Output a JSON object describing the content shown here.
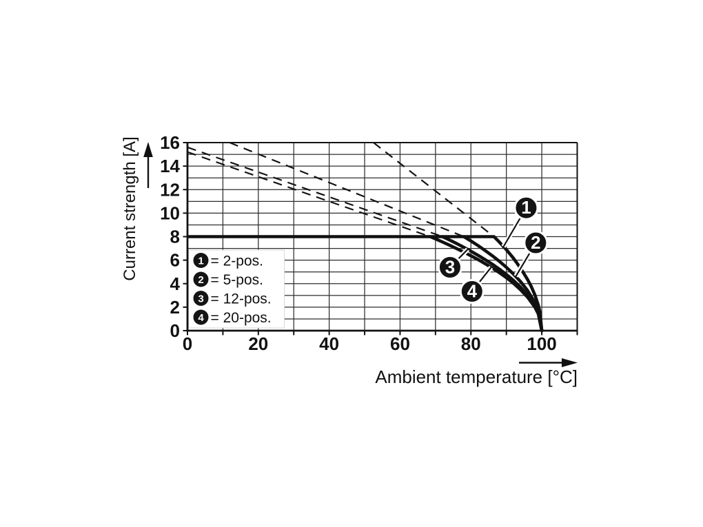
{
  "chart_data": {
    "type": "line",
    "title": "",
    "xlabel": "Ambient temperature [°C]",
    "ylabel": "Current strength [A]",
    "xlim": [
      0,
      110
    ],
    "ylim": [
      0,
      16
    ],
    "x_ticks_labeled": [
      0,
      20,
      40,
      60,
      80,
      100
    ],
    "x_grid_step": 10,
    "y_ticks_labeled": [
      0,
      2,
      4,
      6,
      8,
      10,
      12,
      14,
      16
    ],
    "y_grid_step": 1,
    "grid": true,
    "background": "#ffffff",
    "line_color": "#111111",
    "grid_color": "#2d2d2d",
    "current_limit_a": 8,
    "limit_line": {
      "from_t": 0,
      "to_t": 86.5,
      "current": 8
    },
    "series": [
      {
        "name": "2-pos.",
        "marker_label": "1",
        "points": [
          [
            86.5,
            8
          ],
          [
            88,
            7.54
          ],
          [
            90,
            6.89
          ],
          [
            92,
            6.16
          ],
          [
            94,
            5.33
          ],
          [
            96,
            4.35
          ],
          [
            97,
            3.77
          ],
          [
            98,
            3.08
          ],
          [
            99,
            2.18
          ],
          [
            99.5,
            1.54
          ],
          [
            100,
            0
          ]
        ],
        "dashed_extension": [
          [
            52.5,
            16
          ],
          [
            86.5,
            8
          ]
        ]
      },
      {
        "name": "5-pos.",
        "marker_label": "2",
        "points": [
          [
            78,
            8
          ],
          [
            80,
            7.63
          ],
          [
            82,
            7.24
          ],
          [
            84,
            6.82
          ],
          [
            86,
            6.38
          ],
          [
            88,
            5.91
          ],
          [
            90,
            5.39
          ],
          [
            92,
            4.82
          ],
          [
            94,
            4.18
          ],
          [
            96,
            3.41
          ],
          [
            98,
            2.41
          ],
          [
            99,
            1.71
          ],
          [
            99.5,
            1.21
          ],
          [
            100,
            0
          ]
        ],
        "dashed_extension": [
          [
            11.9,
            16
          ],
          [
            78,
            8
          ]
        ]
      },
      {
        "name": "12-pos.",
        "marker_label": "3",
        "points": [
          [
            72,
            8
          ],
          [
            74,
            7.71
          ],
          [
            76,
            7.41
          ],
          [
            78,
            7.09
          ],
          [
            80,
            6.76
          ],
          [
            82,
            6.41
          ],
          [
            84,
            6.05
          ],
          [
            86,
            5.66
          ],
          [
            88,
            5.24
          ],
          [
            90,
            4.78
          ],
          [
            92,
            4.28
          ],
          [
            94,
            3.7
          ],
          [
            96,
            3.02
          ],
          [
            98,
            2.14
          ],
          [
            99,
            1.51
          ],
          [
            100,
            0
          ]
        ],
        "dashed_extension": [
          [
            0,
            15.6
          ],
          [
            72,
            8
          ]
        ]
      },
      {
        "name": "20-pos.",
        "marker_label": "4",
        "points": [
          [
            68.5,
            8
          ],
          [
            70,
            7.81
          ],
          [
            72,
            7.54
          ],
          [
            74,
            7.27
          ],
          [
            76,
            6.98
          ],
          [
            78,
            6.69
          ],
          [
            80,
            6.37
          ],
          [
            82,
            6.05
          ],
          [
            84,
            5.7
          ],
          [
            86,
            5.33
          ],
          [
            88,
            4.94
          ],
          [
            90,
            4.51
          ],
          [
            92,
            4.03
          ],
          [
            94,
            3.49
          ],
          [
            96,
            2.85
          ],
          [
            98,
            2.02
          ],
          [
            99,
            1.43
          ],
          [
            100,
            0
          ]
        ],
        "dashed_extension": [
          [
            0,
            15.2
          ],
          [
            68.5,
            8
          ]
        ]
      }
    ],
    "legend": {
      "position": "inside lower-left",
      "entries": [
        {
          "symbol": "1",
          "label": "= 2-pos."
        },
        {
          "symbol": "2",
          "label": "= 5-pos."
        },
        {
          "symbol": "3",
          "label": "= 12-pos."
        },
        {
          "symbol": "4",
          "label": "= 20-pos."
        }
      ]
    },
    "markers": [
      {
        "label": "1",
        "at": {
          "t": 95.6,
          "a": 10.45
        },
        "points_to": {
          "t": 89.2,
          "a": 7.15
        }
      },
      {
        "label": "2",
        "at": {
          "t": 98.3,
          "a": 7.47
        },
        "points_to": {
          "t": 92.7,
          "a": 4.63
        }
      },
      {
        "label": "3",
        "at": {
          "t": 74.1,
          "a": 5.39
        },
        "points_to": {
          "t": 79.1,
          "a": 6.92
        }
      },
      {
        "label": "4",
        "at": {
          "t": 80.3,
          "a": 3.34
        },
        "points_to": {
          "t": 85.7,
          "a": 5.39
        }
      }
    ]
  }
}
